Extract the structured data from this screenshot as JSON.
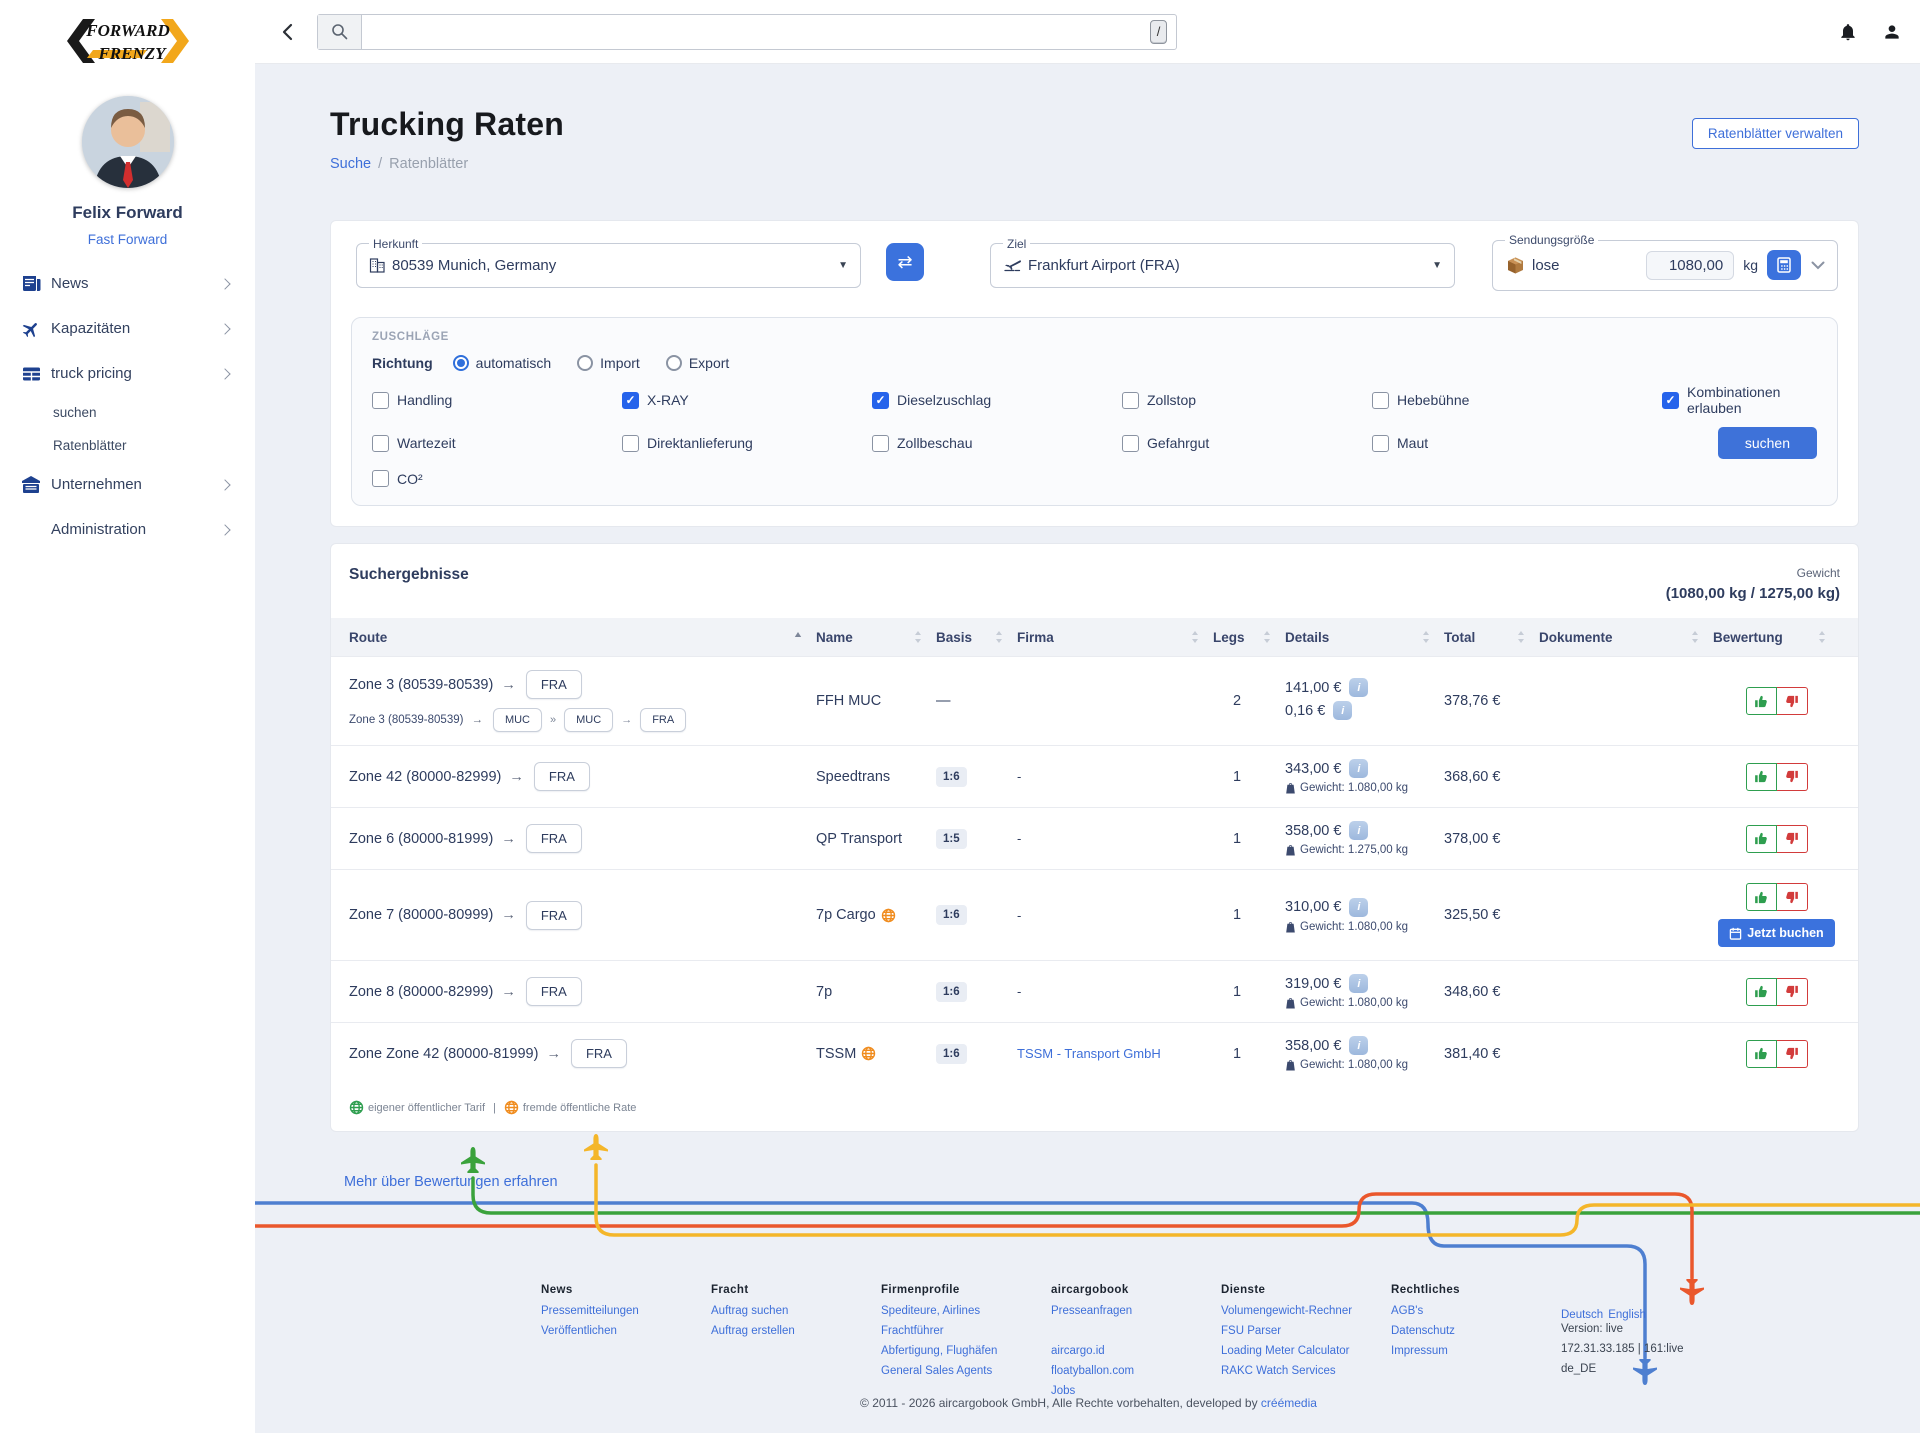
{
  "logo": {
    "line1": "FORWARD",
    "line2": "FRENZY"
  },
  "topbar": {
    "search_value": "",
    "shortcut_key": "/"
  },
  "sidebar": {
    "user": {
      "name": "Felix Forward",
      "company": "Fast Forward"
    },
    "items": [
      {
        "label": "News",
        "icon": "newspaper"
      },
      {
        "label": "Kapazitäten",
        "icon": "plane"
      },
      {
        "label": "truck pricing",
        "icon": "table",
        "sub": [
          "suchen",
          "Ratenblätter"
        ]
      },
      {
        "label": "Unternehmen",
        "icon": "building"
      },
      {
        "label": "Administration",
        "icon": null
      }
    ]
  },
  "page": {
    "title": "Trucking Raten",
    "breadcrumb_link": "Suche",
    "breadcrumb_sep": "/",
    "breadcrumb_current": "Ratenblätter",
    "manage_button": "Ratenblätter verwalten"
  },
  "form": {
    "origin": {
      "label": "Herkunft",
      "value": "80539 Munich, Germany"
    },
    "destination": {
      "label": "Ziel",
      "value": "Frankfurt Airport (FRA)"
    },
    "shipment": {
      "label": "Sendungsgröße",
      "type": "lose",
      "weight": "1080,00",
      "unit": "kg"
    },
    "surcharges": {
      "title": "ZUSCHLÄGE",
      "direction_label": "Richtung",
      "direction_options": [
        {
          "label": "automatisch",
          "selected": true
        },
        {
          "label": "Import",
          "selected": false
        },
        {
          "label": "Export",
          "selected": false
        }
      ],
      "checkboxes": [
        {
          "label": "Handling",
          "checked": false
        },
        {
          "label": "X-RAY",
          "checked": true
        },
        {
          "label": "Dieselzuschlag",
          "checked": true
        },
        {
          "label": "Zollstop",
          "checked": false
        },
        {
          "label": "Hebebühne",
          "checked": false
        },
        {
          "label": "Kombinationen erlauben",
          "checked": true
        },
        {
          "label": "Wartezeit",
          "checked": false
        },
        {
          "label": "Direktanlieferung",
          "checked": false
        },
        {
          "label": "Zollbeschau",
          "checked": false
        },
        {
          "label": "Gefahrgut",
          "checked": false
        },
        {
          "label": "Maut",
          "checked": false
        },
        {
          "label": "CO²",
          "checked": false
        }
      ],
      "search_button": "suchen"
    }
  },
  "results": {
    "title": "Suchergebnisse",
    "weight_label": "Gewicht",
    "weight_value": "(1080,00 kg / 1275,00 kg)",
    "columns": [
      "Route",
      "Name",
      "Basis",
      "Firma",
      "Legs",
      "Details",
      "Total",
      "Dokumente",
      "Bewertung"
    ],
    "book_button": "Jetzt buchen",
    "rows": [
      {
        "route": "Zone 3 (80539-80539)",
        "route_chip": "FRA",
        "subroute": {
          "text": "Zone 3 (80539-80539)",
          "chips": [
            "MUC",
            "MUC",
            "FRA"
          ],
          "seps": [
            "»",
            "→"
          ]
        },
        "name": "FFH MUC",
        "globe": null,
        "basis": "—",
        "basis_badge": false,
        "firma": "",
        "firma_is_link": false,
        "legs": "2",
        "prices": [
          "141,00 €",
          "0,16 €"
        ],
        "weight": null,
        "total": "378,76 €",
        "book": false
      },
      {
        "route": "Zone 42 (80000-82999)",
        "route_chip": "FRA",
        "name": "Speedtrans",
        "globe": null,
        "basis": "1:6",
        "basis_badge": true,
        "firma": "-",
        "firma_is_link": false,
        "legs": "1",
        "prices": [
          "343,00 €"
        ],
        "weight": "Gewicht: 1.080,00 kg",
        "total": "368,60 €",
        "book": false
      },
      {
        "route": "Zone 6 (80000-81999)",
        "route_chip": "FRA",
        "name": "QP Transport",
        "globe": null,
        "basis": "1:5",
        "basis_badge": true,
        "firma": "-",
        "firma_is_link": false,
        "legs": "1",
        "prices": [
          "358,00 €"
        ],
        "weight": "Gewicht: 1.275,00 kg",
        "total": "378,00 €",
        "book": false
      },
      {
        "route": "Zone 7 (80000-80999)",
        "route_chip": "FRA",
        "name": "7p Cargo",
        "globe": "orange",
        "basis": "1:6",
        "basis_badge": true,
        "firma": "-",
        "firma_is_link": false,
        "legs": "1",
        "prices": [
          "310,00 €"
        ],
        "weight": "Gewicht: 1.080,00 kg",
        "total": "325,50 €",
        "book": true
      },
      {
        "route": "Zone 8 (80000-82999)",
        "route_chip": "FRA",
        "name": "7p",
        "globe": null,
        "basis": "1:6",
        "basis_badge": true,
        "firma": "-",
        "firma_is_link": false,
        "legs": "1",
        "prices": [
          "319,00 €"
        ],
        "weight": "Gewicht: 1.080,00 kg",
        "total": "348,60 €",
        "book": false
      },
      {
        "route": "Zone Zone 42 (80000-81999)",
        "route_chip": "FRA",
        "name": "TSSM",
        "globe": "orange",
        "basis": "1:6",
        "basis_badge": true,
        "firma": "TSSM - Transport GmbH",
        "firma_is_link": true,
        "legs": "1",
        "prices": [
          "358,00 €"
        ],
        "weight": "Gewicht: 1.080,00 kg",
        "total": "381,40 €",
        "book": false
      }
    ],
    "legend": [
      {
        "label": "eigener öffentlicher Tarif",
        "color": "#2e9e4f"
      },
      {
        "label": "fremde öffentliche Rate",
        "color": "#f08c1e"
      }
    ],
    "legend_sep": "|"
  },
  "ratings_link": "Mehr über Bewertungen erfahren",
  "footer": {
    "columns": [
      {
        "title": "News",
        "links": [
          "Pressemitteilungen",
          "Veröffentlichen"
        ]
      },
      {
        "title": "Fracht",
        "links": [
          "Auftrag suchen",
          "Auftrag erstellen"
        ]
      },
      {
        "title": "Firmenprofile",
        "links": [
          "Spediteure, Airlines",
          "Frachtführer",
          "Abfertigung, Flughäfen",
          "General Sales Agents"
        ]
      },
      {
        "title": "aircargobook",
        "links": [
          "Presseanfragen",
          "",
          "aircargo.id",
          "floatyballon.com",
          "Jobs"
        ]
      },
      {
        "title": "Dienste",
        "links": [
          "Volumengewicht-Rechner",
          "FSU Parser",
          "Loading Meter Calculator",
          "RAKC Watch Services"
        ]
      },
      {
        "title": "Rechtliches",
        "links": [
          "AGB's",
          "Datenschutz",
          "Impressum"
        ]
      }
    ],
    "info_column": {
      "languages": [
        "Deutsch",
        "English"
      ],
      "lines": [
        "Version: live",
        "172.31.33.185 | 161:live",
        "de_DE"
      ]
    },
    "copyright_text": "© 2011 - 2026 aircargobook GmbH, Alle Rechte vorbehalten, developed by",
    "copyright_link": "créémedia"
  },
  "colors": {
    "accent_blue": "#3b72dd",
    "checked_blue": "#2563eb",
    "thumb_green": "#2e9e4f",
    "thumb_red": "#d23b3b"
  }
}
